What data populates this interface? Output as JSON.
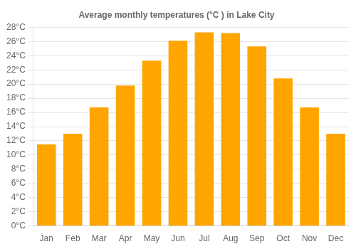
{
  "chart_data": {
    "type": "bar",
    "title": "Average monthly temperatures (°C ) in Lake City",
    "categories": [
      "Jan",
      "Feb",
      "Mar",
      "Apr",
      "May",
      "Jun",
      "Jul",
      "Aug",
      "Sep",
      "Oct",
      "Nov",
      "Dec"
    ],
    "values": [
      11.5,
      13.0,
      16.7,
      19.8,
      23.3,
      26.1,
      27.3,
      27.2,
      25.3,
      20.8,
      16.7,
      13.0
    ],
    "color": "#FFA500",
    "ylim": [
      0,
      28
    ],
    "yticks": [
      {
        "value": 0,
        "label": "0°C"
      },
      {
        "value": 2,
        "label": "2°C"
      },
      {
        "value": 4,
        "label": "4°C"
      },
      {
        "value": 6,
        "label": "6°C"
      },
      {
        "value": 8,
        "label": "8°C"
      },
      {
        "value": 10,
        "label": "10°C"
      },
      {
        "value": 12,
        "label": "12°C"
      },
      {
        "value": 14,
        "label": "14°C"
      },
      {
        "value": 16,
        "label": "16°C"
      },
      {
        "value": 18,
        "label": "18°C"
      },
      {
        "value": 20,
        "label": "20°C"
      },
      {
        "value": 22,
        "label": "22°C"
      },
      {
        "value": 24,
        "label": "24°C"
      },
      {
        "value": 26,
        "label": "26°C"
      },
      {
        "value": 28,
        "label": "28°C"
      }
    ],
    "grid": true
  }
}
